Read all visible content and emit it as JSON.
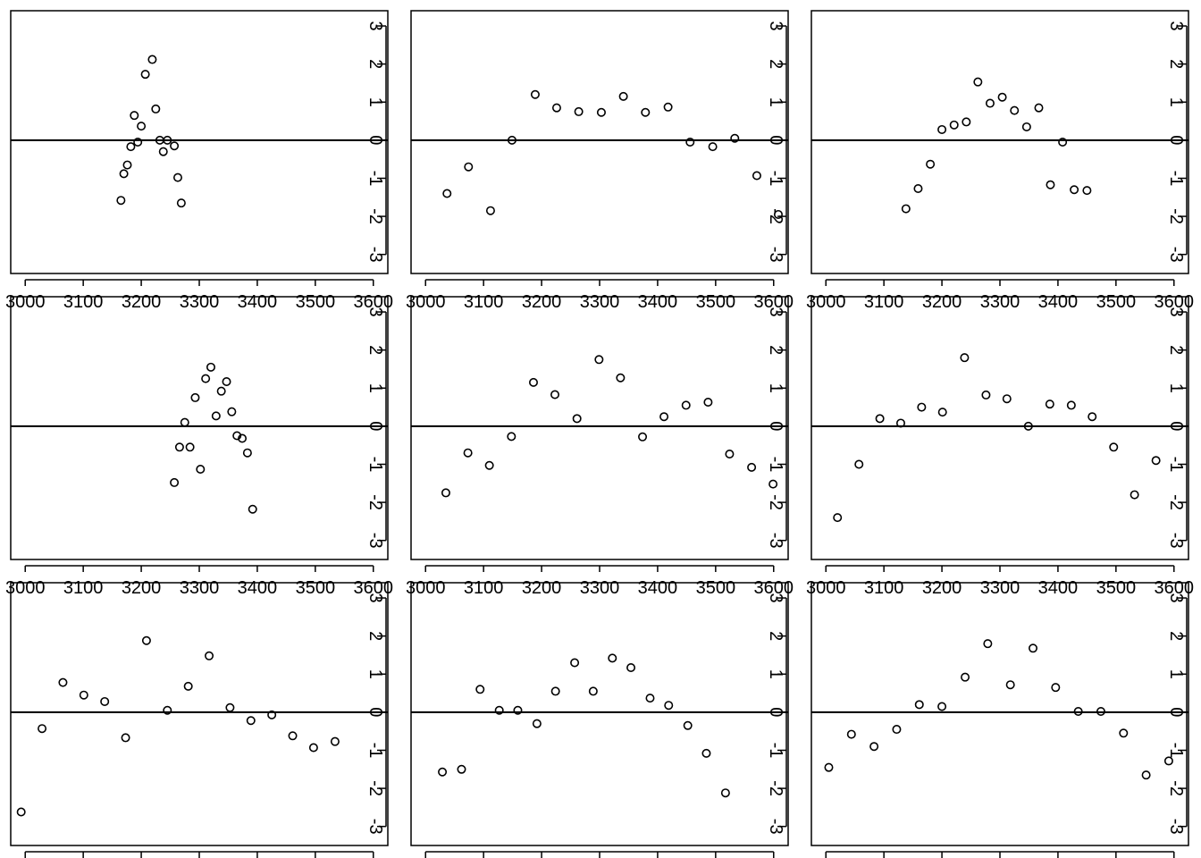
{
  "chart_data": [
    {
      "type": "scatter",
      "xlim": [
        2975,
        3625
      ],
      "ylim": [
        -3.5,
        3.4
      ],
      "hline": 0,
      "grid": false,
      "x_ticks": [
        3000,
        3100,
        3200,
        3300,
        3400,
        3500,
        3600
      ],
      "y_ticks": [
        -3,
        -2,
        -1,
        0,
        1,
        2,
        3
      ],
      "y_axis_side": "right",
      "x": [
        3165,
        3170,
        3176,
        3182,
        3188,
        3194,
        3200,
        3207,
        3219,
        3225,
        3232,
        3238,
        3245,
        3257,
        3263,
        3269,
        3276
      ],
      "y": [
        -1.58,
        -0.88,
        -0.65,
        -0.17,
        0.65,
        -0.05,
        0.37,
        1.73,
        2.12,
        0.82,
        0.0,
        -0.3,
        0.0,
        -0.15,
        -0.98,
        -1.65,
        null
      ]
    },
    {
      "type": "scatter",
      "xlim": [
        2975,
        3625
      ],
      "ylim": [
        -3.5,
        3.4
      ],
      "hline": 0,
      "grid": false,
      "x_ticks": [
        3000,
        3100,
        3200,
        3300,
        3400,
        3500,
        3600
      ],
      "y_ticks": [
        -3,
        -2,
        -1,
        0,
        1,
        2,
        3
      ],
      "y_axis_side": "right",
      "x": [
        3037,
        3074,
        3112,
        3149,
        3189,
        3226,
        3264,
        3303,
        3341,
        3379,
        3418,
        3456,
        3495,
        3533,
        3571,
        3608
      ],
      "y": [
        -1.4,
        -0.7,
        -1.85,
        0.0,
        1.2,
        0.85,
        0.75,
        0.73,
        1.15,
        0.73,
        0.87,
        -0.05,
        -0.17,
        0.05,
        -0.93,
        -1.95
      ]
    },
    {
      "type": "scatter",
      "xlim": [
        2975,
        3625
      ],
      "ylim": [
        -3.5,
        3.4
      ],
      "hline": 0,
      "grid": false,
      "x_ticks": [
        3000,
        3100,
        3200,
        3300,
        3400,
        3500,
        3600
      ],
      "y_ticks": [
        -3,
        -2,
        -1,
        0,
        1,
        2,
        3
      ],
      "y_axis_side": "right",
      "x": [
        3138,
        3159,
        3180,
        3200,
        3221,
        3242,
        3262,
        3283,
        3304,
        3325,
        3346,
        3367,
        3387,
        3408,
        3428,
        3450
      ],
      "y": [
        -1.8,
        -1.27,
        -0.63,
        0.28,
        0.4,
        0.48,
        1.53,
        0.97,
        1.13,
        0.78,
        0.35,
        0.85,
        -1.17,
        -0.05,
        -1.3,
        -1.32
      ]
    },
    {
      "type": "scatter",
      "xlim": [
        2975,
        3625
      ],
      "ylim": [
        -3.5,
        3.4
      ],
      "hline": 0,
      "grid": false,
      "x_ticks": [
        3000,
        3100,
        3200,
        3300,
        3400,
        3500,
        3600
      ],
      "y_ticks": [
        -3,
        -2,
        -1,
        0,
        1,
        2,
        3
      ],
      "y_axis_side": "right",
      "x": [
        3257,
        3266,
        3275,
        3284,
        3293,
        3302,
        3311,
        3320,
        3329,
        3338,
        3347,
        3356,
        3365,
        3374,
        3383,
        3392,
        3401,
        3410,
        3419,
        3428
      ],
      "y": [
        -1.48,
        -0.55,
        0.1,
        -0.55,
        0.75,
        -1.13,
        1.25,
        1.55,
        0.27,
        0.92,
        1.17,
        0.38,
        -0.25,
        -0.32,
        -0.7,
        -2.18,
        null,
        null,
        null,
        null
      ]
    },
    {
      "type": "scatter",
      "xlim": [
        2975,
        3625
      ],
      "ylim": [
        -3.5,
        3.4
      ],
      "hline": 0,
      "grid": false,
      "x_ticks": [
        3000,
        3100,
        3200,
        3300,
        3400,
        3500,
        3600
      ],
      "y_ticks": [
        -3,
        -2,
        -1,
        0,
        1,
        2,
        3
      ],
      "y_axis_side": "right",
      "x": [
        3035,
        3073,
        3110,
        3148,
        3186,
        3223,
        3261,
        3299,
        3336,
        3374,
        3411,
        3449,
        3487,
        3524,
        3562,
        3599
      ],
      "y": [
        -1.75,
        -0.7,
        -1.03,
        -0.27,
        1.15,
        0.83,
        0.2,
        1.75,
        1.27,
        -0.28,
        0.25,
        0.55,
        0.63,
        -0.73,
        -1.08,
        -1.52
      ]
    },
    {
      "type": "scatter",
      "xlim": [
        2975,
        3625
      ],
      "ylim": [
        -3.5,
        3.4
      ],
      "hline": 0,
      "grid": false,
      "x_ticks": [
        3000,
        3100,
        3200,
        3300,
        3400,
        3500,
        3600
      ],
      "y_ticks": [
        -3,
        -2,
        -1,
        0,
        1,
        2,
        3
      ],
      "y_axis_side": "right",
      "x": [
        3020,
        3057,
        3093,
        3129,
        3165,
        3201,
        3239,
        3276,
        3312,
        3349,
        3386,
        3423,
        3459,
        3496,
        3532,
        3569
      ],
      "y": [
        -2.4,
        -1.0,
        0.2,
        0.08,
        0.5,
        0.37,
        1.8,
        0.82,
        0.72,
        0.0,
        0.58,
        0.55,
        0.25,
        -0.55,
        -1.8,
        -0.9
      ]
    },
    {
      "type": "scatter",
      "xlim": [
        2975,
        3625
      ],
      "ylim": [
        -3.5,
        3.4
      ],
      "hline": 0,
      "grid": false,
      "x_ticks": [
        3000,
        3100,
        3200,
        3300,
        3400,
        3500,
        3600
      ],
      "y_ticks": [
        -3,
        -2,
        -1,
        0,
        1,
        2,
        3
      ],
      "y_axis_side": "right",
      "x": [
        2993,
        3029,
        3065,
        3101,
        3137,
        3173,
        3209,
        3245,
        3281,
        3317,
        3353,
        3389,
        3425,
        3461,
        3497,
        3534
      ],
      "y": [
        -2.62,
        -0.43,
        0.78,
        0.45,
        0.28,
        -0.67,
        1.88,
        0.05,
        0.68,
        1.48,
        0.12,
        -0.22,
        -0.07,
        -0.62,
        -0.93,
        -0.77
      ]
    },
    {
      "type": "scatter",
      "xlim": [
        2975,
        3625
      ],
      "ylim": [
        -3.5,
        3.4
      ],
      "hline": 0,
      "grid": false,
      "x_ticks": [
        3000,
        3100,
        3200,
        3300,
        3400,
        3500,
        3600
      ],
      "y_ticks": [
        -3,
        -2,
        -1,
        0,
        1,
        2,
        3
      ],
      "y_axis_side": "right",
      "x": [
        3029,
        3062,
        3094,
        3127,
        3159,
        3192,
        3224,
        3257,
        3289,
        3322,
        3354,
        3387,
        3419,
        3452,
        3484,
        3517
      ],
      "y": [
        -1.57,
        -1.5,
        0.6,
        0.05,
        0.05,
        -0.3,
        0.55,
        1.3,
        0.55,
        1.42,
        1.17,
        0.37,
        0.18,
        -0.35,
        -1.08,
        -2.12
      ]
    },
    {
      "type": "scatter",
      "xlim": [
        2975,
        3625
      ],
      "ylim": [
        -3.5,
        3.4
      ],
      "hline": 0,
      "grid": false,
      "x_ticks": [
        3000,
        3100,
        3200,
        3300,
        3400,
        3500,
        3600
      ],
      "y_ticks": [
        -3,
        -2,
        -1,
        0,
        1,
        2,
        3
      ],
      "y_axis_side": "right",
      "x": [
        3005,
        3044,
        3083,
        3122,
        3161,
        3200,
        3240,
        3279,
        3318,
        3357,
        3396,
        3435,
        3474,
        3513,
        3552,
        3591
      ],
      "y": [
        -1.45,
        -0.58,
        -0.9,
        -0.45,
        0.2,
        0.15,
        0.92,
        1.8,
        0.72,
        1.68,
        0.65,
        0.02,
        0.02,
        -0.55,
        -1.65,
        -1.28
      ]
    }
  ]
}
